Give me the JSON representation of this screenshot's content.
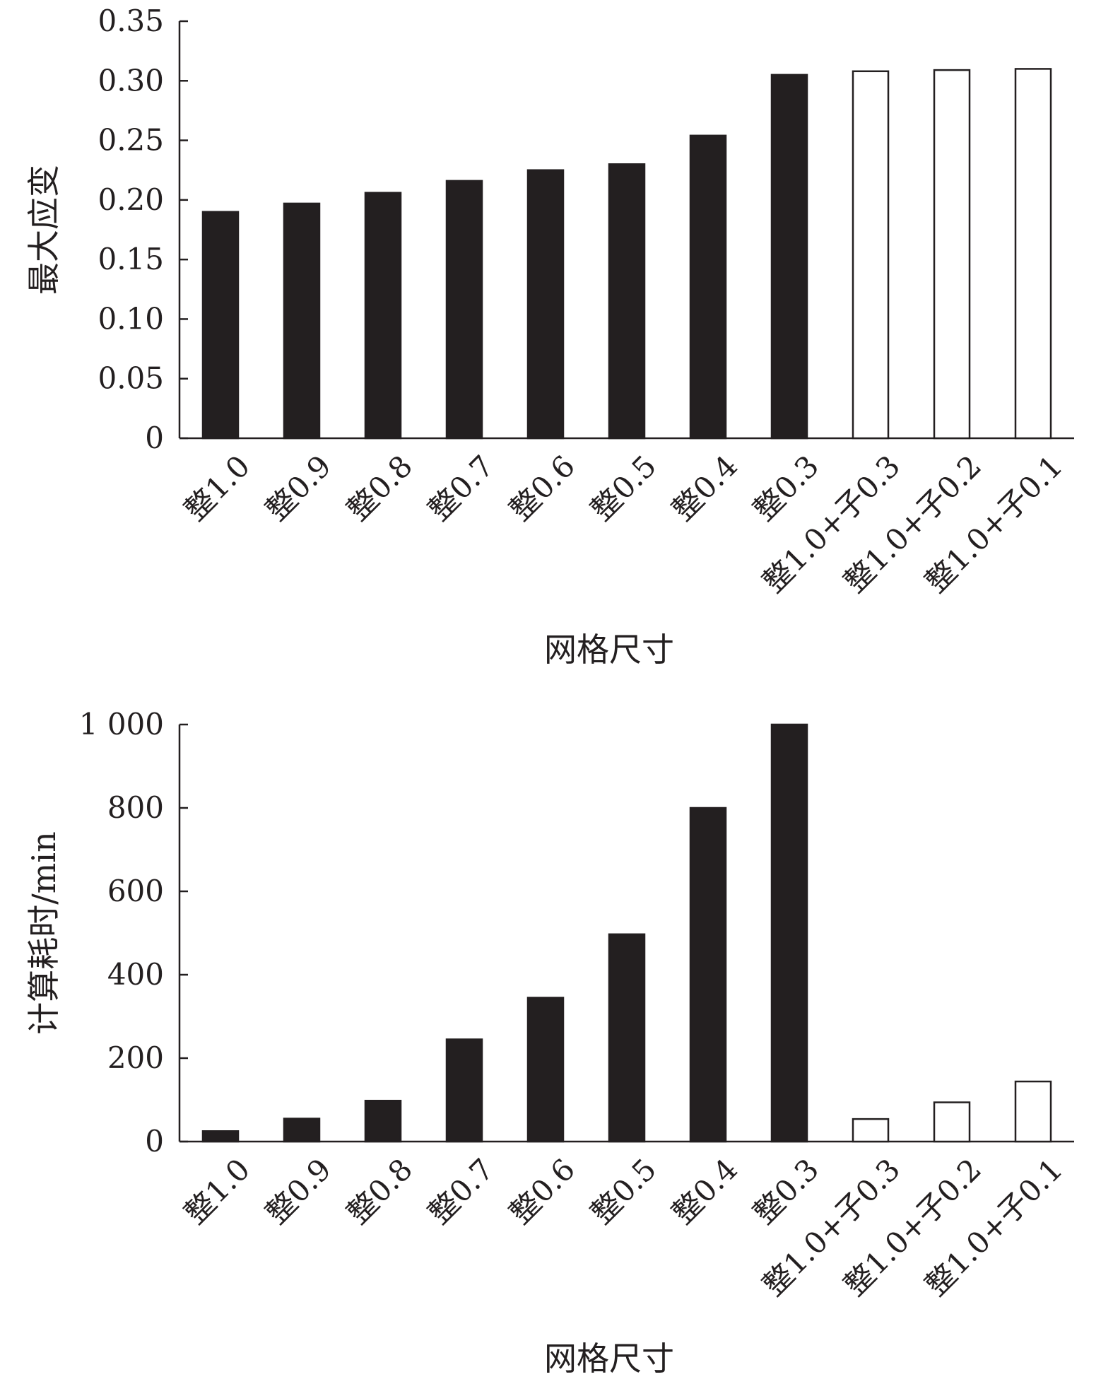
{
  "chart_data": [
    {
      "type": "bar",
      "title": "",
      "xlabel": "网格尺寸",
      "ylabel": "最大应变",
      "ylim": [
        0,
        0.35
      ],
      "yticks": [
        "0",
        "0.05",
        "0.10",
        "0.15",
        "0.20",
        "0.25",
        "0.30",
        "0.35"
      ],
      "categories": [
        "整1.0",
        "整0.9",
        "整0.8",
        "整0.7",
        "整0.6",
        "整0.5",
        "整0.4",
        "整0.3",
        "整1.0+子0.3",
        "整1.0+子0.2",
        "整1.0+子0.1"
      ],
      "values": [
        0.19,
        0.197,
        0.206,
        0.216,
        0.225,
        0.23,
        0.254,
        0.305,
        0.308,
        0.309,
        0.31
      ],
      "bar_colors": [
        "#231f20",
        "#231f20",
        "#231f20",
        "#231f20",
        "#231f20",
        "#231f20",
        "#231f20",
        "#231f20",
        "#ffffff",
        "#ffffff",
        "#ffffff"
      ],
      "grid": false,
      "legend": "none"
    },
    {
      "type": "bar",
      "title": "",
      "xlabel": "网格尺寸",
      "ylabel": "计算耗时/min",
      "ylim": [
        0,
        1000
      ],
      "yticks": [
        "0",
        "200",
        "400",
        "600",
        "800",
        "1 000"
      ],
      "categories": [
        "整1.0",
        "整0.9",
        "整0.8",
        "整0.7",
        "整0.6",
        "整0.5",
        "整0.4",
        "整0.3",
        "整1.0+子0.3",
        "整1.0+子0.2",
        "整1.0+子0.1"
      ],
      "values": [
        25,
        55,
        98,
        245,
        345,
        497,
        800,
        1000,
        54,
        94,
        144
      ],
      "bar_colors": [
        "#231f20",
        "#231f20",
        "#231f20",
        "#231f20",
        "#231f20",
        "#231f20",
        "#231f20",
        "#231f20",
        "#ffffff",
        "#ffffff",
        "#ffffff"
      ],
      "grid": false,
      "legend": "none"
    }
  ]
}
